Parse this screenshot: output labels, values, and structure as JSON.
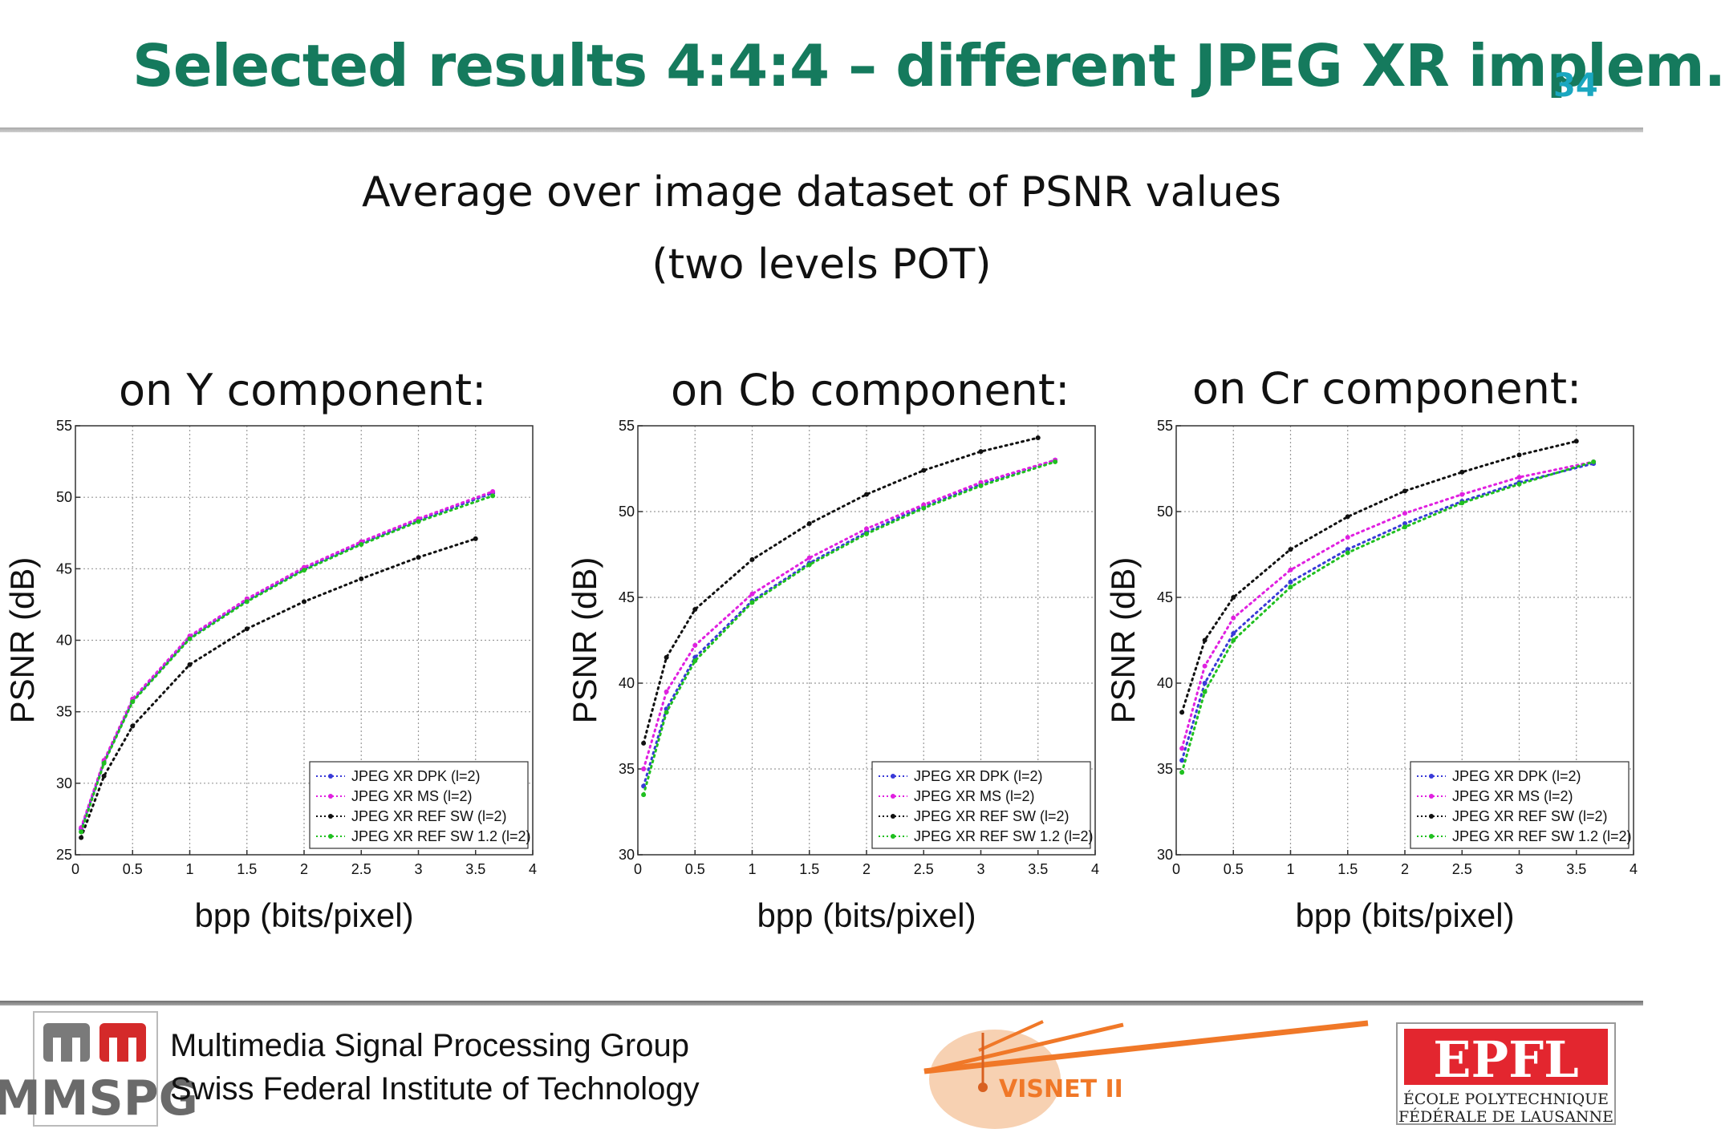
{
  "header": {
    "title": "Selected results 4:4:4 – different JPEG XR implem.",
    "page_number": "34"
  },
  "subtitle": {
    "line1": "Average over image dataset of PSNR values",
    "line2": "(two levels POT)"
  },
  "panels": [
    {
      "title": "on Y component:"
    },
    {
      "title": "on Cb component:"
    },
    {
      "title": "on Cr component:"
    }
  ],
  "chart_data": [
    {
      "type": "line",
      "title": "on Y component:",
      "xlabel": "bpp (bits/pixel)",
      "ylabel": "PSNR (dB)",
      "xlim": [
        0,
        4
      ],
      "ylim": [
        25,
        55
      ],
      "xticks": [
        0,
        0.5,
        1,
        1.5,
        2,
        2.5,
        3,
        3.5,
        4
      ],
      "yticks": [
        25,
        30,
        35,
        40,
        45,
        50,
        55
      ],
      "grid": true,
      "legend_position": "bottom-right",
      "series": [
        {
          "name": "JPEG XR DPK (l=2)",
          "color": "#3a3ad8",
          "x": [
            0.05,
            0.25,
            0.5,
            1.0,
            1.5,
            2.0,
            2.5,
            3.0,
            3.65
          ],
          "y": [
            26.8,
            31.5,
            35.8,
            40.2,
            42.8,
            45.0,
            46.8,
            48.4,
            50.3
          ]
        },
        {
          "name": "JPEG XR MS (l=2)",
          "color": "#e020e0",
          "x": [
            0.05,
            0.25,
            0.5,
            1.0,
            1.5,
            2.0,
            2.5,
            3.0,
            3.65
          ],
          "y": [
            26.9,
            31.6,
            35.9,
            40.3,
            42.9,
            45.1,
            46.9,
            48.5,
            50.4
          ]
        },
        {
          "name": "JPEG XR REF SW (l=2)",
          "color": "#111111",
          "x": [
            0.05,
            0.25,
            0.5,
            1.0,
            1.5,
            2.0,
            2.5,
            3.0,
            3.5
          ],
          "y": [
            26.2,
            30.5,
            34.0,
            38.3,
            40.8,
            42.7,
            44.3,
            45.8,
            47.1
          ]
        },
        {
          "name": "JPEG XR REF SW 1.2 (l=2)",
          "color": "#20c020",
          "x": [
            0.05,
            0.25,
            0.5,
            1.0,
            1.5,
            2.0,
            2.5,
            3.0,
            3.65
          ],
          "y": [
            26.6,
            31.4,
            35.7,
            40.1,
            42.7,
            44.9,
            46.7,
            48.3,
            50.1
          ]
        }
      ]
    },
    {
      "type": "line",
      "title": "on Cb component:",
      "xlabel": "bpp (bits/pixel)",
      "ylabel": "PSNR (dB)",
      "xlim": [
        0,
        4
      ],
      "ylim": [
        30,
        55
      ],
      "xticks": [
        0,
        0.5,
        1,
        1.5,
        2,
        2.5,
        3,
        3.5,
        4
      ],
      "yticks": [
        30,
        35,
        40,
        45,
        50,
        55
      ],
      "grid": true,
      "legend_position": "bottom-right",
      "series": [
        {
          "name": "JPEG XR DPK (l=2)",
          "color": "#3a3ad8",
          "x": [
            0.05,
            0.25,
            0.5,
            1.0,
            1.5,
            2.0,
            2.5,
            3.0,
            3.65
          ],
          "y": [
            34.0,
            38.5,
            41.5,
            44.8,
            47.0,
            48.8,
            50.3,
            51.6,
            53.0
          ]
        },
        {
          "name": "JPEG XR MS (l=2)",
          "color": "#e020e0",
          "x": [
            0.05,
            0.25,
            0.5,
            1.0,
            1.5,
            2.0,
            2.5,
            3.0,
            3.65
          ],
          "y": [
            35.0,
            39.5,
            42.2,
            45.2,
            47.3,
            49.0,
            50.4,
            51.7,
            53.0
          ]
        },
        {
          "name": "JPEG XR REF SW (l=2)",
          "color": "#111111",
          "x": [
            0.05,
            0.25,
            0.5,
            1.0,
            1.5,
            2.0,
            2.5,
            3.0,
            3.5
          ],
          "y": [
            36.5,
            41.5,
            44.3,
            47.2,
            49.3,
            51.0,
            52.4,
            53.5,
            54.3
          ]
        },
        {
          "name": "JPEG XR REF SW 1.2 (l=2)",
          "color": "#20c020",
          "x": [
            0.05,
            0.25,
            0.5,
            1.0,
            1.5,
            2.0,
            2.5,
            3.0,
            3.65
          ],
          "y": [
            33.5,
            38.3,
            41.3,
            44.7,
            46.9,
            48.7,
            50.2,
            51.5,
            52.9
          ]
        }
      ]
    },
    {
      "type": "line",
      "title": "on Cr component:",
      "xlabel": "bpp (bits/pixel)",
      "ylabel": "PSNR (dB)",
      "xlim": [
        0,
        4
      ],
      "ylim": [
        30,
        55
      ],
      "xticks": [
        0,
        0.5,
        1,
        1.5,
        2,
        2.5,
        3,
        3.5,
        4
      ],
      "yticks": [
        30,
        35,
        40,
        45,
        50,
        55
      ],
      "grid": true,
      "legend_position": "bottom-right",
      "series": [
        {
          "name": "JPEG XR DPK (l=2)",
          "color": "#3a3ad8",
          "x": [
            0.05,
            0.25,
            0.5,
            1.0,
            1.5,
            2.0,
            2.5,
            3.0,
            3.65
          ],
          "y": [
            35.5,
            40.0,
            42.9,
            45.9,
            47.8,
            49.3,
            50.6,
            51.7,
            52.8
          ]
        },
        {
          "name": "JPEG XR MS (l=2)",
          "color": "#e020e0",
          "x": [
            0.05,
            0.25,
            0.5,
            1.0,
            1.5,
            2.0,
            2.5,
            3.0,
            3.65
          ],
          "y": [
            36.2,
            41.0,
            43.8,
            46.6,
            48.5,
            49.9,
            51.0,
            52.0,
            52.9
          ]
        },
        {
          "name": "JPEG XR REF SW (l=2)",
          "color": "#111111",
          "x": [
            0.05,
            0.25,
            0.5,
            1.0,
            1.5,
            2.0,
            2.5,
            3.0,
            3.5
          ],
          "y": [
            38.3,
            42.5,
            45.0,
            47.8,
            49.7,
            51.2,
            52.3,
            53.3,
            54.1
          ]
        },
        {
          "name": "JPEG XR REF SW 1.2 (l=2)",
          "color": "#20c020",
          "x": [
            0.05,
            0.25,
            0.5,
            1.0,
            1.5,
            2.0,
            2.5,
            3.0,
            3.65
          ],
          "y": [
            34.8,
            39.5,
            42.5,
            45.6,
            47.6,
            49.1,
            50.5,
            51.6,
            52.9
          ]
        }
      ]
    }
  ],
  "footer": {
    "org_line1": "Multimedia Signal Processing Group",
    "org_line2": "Swiss Federal Institute of Technology",
    "mmspg_logo_text": "MMSPG",
    "visnet_logo_text": "VISNET II",
    "epfl_logo_text": "EPFL",
    "epfl_line1": "ÉCOLE POLYTECHNIQUE",
    "epfl_line2": "FÉDÉRALE DE LAUSANNE"
  }
}
